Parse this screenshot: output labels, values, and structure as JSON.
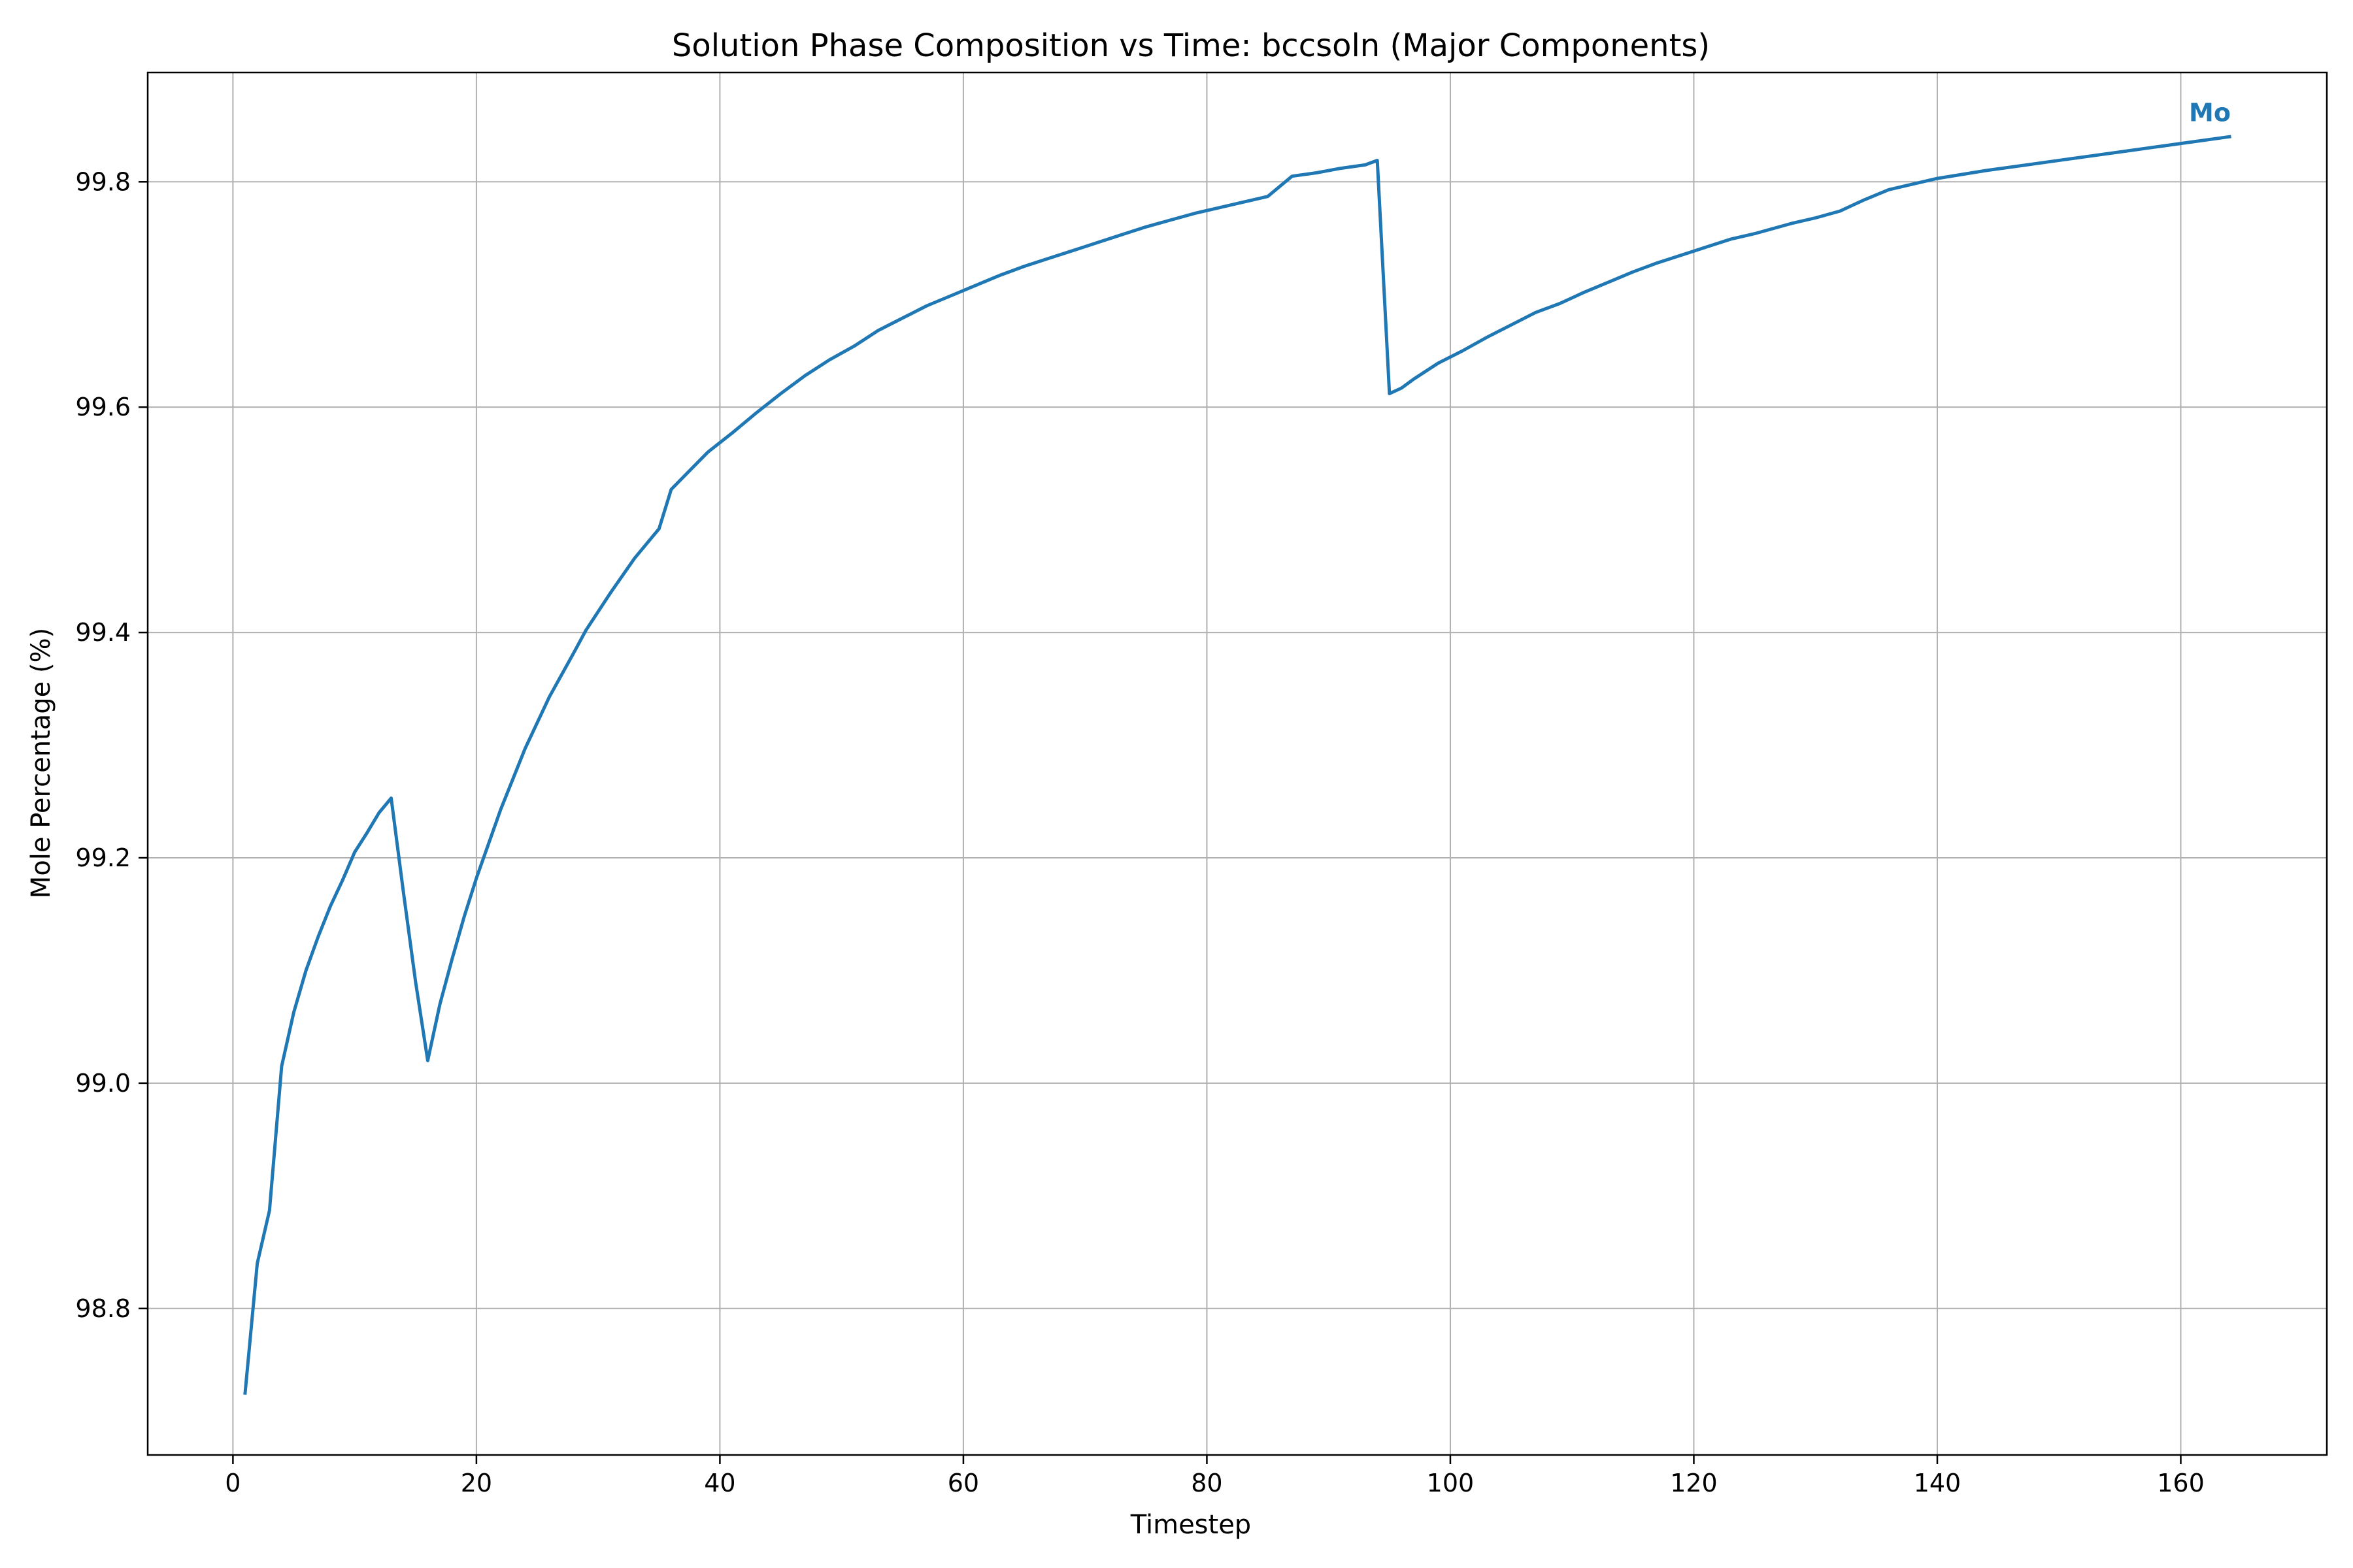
{
  "chart_data": {
    "type": "line",
    "title": "Solution Phase Composition vs Time: bccsoln (Major Components)",
    "xlabel": "Timestep",
    "ylabel": "Mole Percentage (%)",
    "xlim": [
      -7,
      172
    ],
    "ylim": [
      98.67,
      99.897
    ],
    "xticks": [
      0,
      20,
      40,
      60,
      80,
      100,
      120,
      140,
      160
    ],
    "yticks": [
      98.8,
      99.0,
      99.2,
      99.4,
      99.6,
      99.8
    ],
    "xtick_labels": [
      "0",
      "20",
      "40",
      "60",
      "80",
      "100",
      "120",
      "140",
      "160"
    ],
    "ytick_labels": [
      "98.8",
      "99.0",
      "99.2",
      "99.4",
      "99.6",
      "99.8"
    ],
    "grid": true,
    "series": [
      {
        "name": "Mo",
        "color": "#1f77b4",
        "x": [
          1,
          2,
          3,
          4,
          5,
          6,
          7,
          8,
          9,
          10,
          11,
          12,
          13,
          14,
          15,
          16,
          17,
          18,
          19,
          20,
          22,
          24,
          26,
          28,
          29,
          31,
          33,
          35,
          36,
          37,
          39,
          41,
          43,
          45,
          47,
          49,
          51,
          53,
          55,
          57,
          59,
          61,
          63,
          65,
          67,
          69,
          71,
          73,
          75,
          77,
          79,
          81,
          83,
          85,
          87,
          89,
          91,
          93,
          94,
          95,
          96,
          97,
          99,
          101,
          103,
          105,
          107,
          109,
          111,
          113,
          115,
          117,
          119,
          121,
          123,
          125,
          128,
          130,
          132,
          134,
          136,
          140,
          144,
          148,
          152,
          156,
          160,
          164
        ],
        "y": [
          98.725,
          98.84,
          98.887,
          99.015,
          99.063,
          99.1,
          99.13,
          99.157,
          99.18,
          99.205,
          99.222,
          99.24,
          99.253,
          99.17,
          99.09,
          99.02,
          99.07,
          99.11,
          99.148,
          99.182,
          99.243,
          99.297,
          99.343,
          99.382,
          99.402,
          99.435,
          99.466,
          99.492,
          99.527,
          99.538,
          99.56,
          99.577,
          99.595,
          99.612,
          99.628,
          99.642,
          99.654,
          99.668,
          99.679,
          99.69,
          99.699,
          99.708,
          99.717,
          99.725,
          99.732,
          99.739,
          99.746,
          99.753,
          99.76,
          99.766,
          99.772,
          99.777,
          99.782,
          99.787,
          99.805,
          99.808,
          99.812,
          99.815,
          99.819,
          99.612,
          99.617,
          99.625,
          99.639,
          99.65,
          99.662,
          99.673,
          99.684,
          99.692,
          99.702,
          99.711,
          99.72,
          99.728,
          99.735,
          99.742,
          99.749,
          99.754,
          99.763,
          99.768,
          99.774,
          99.784,
          99.793,
          99.803,
          99.81,
          99.816,
          99.822,
          99.828,
          99.834,
          99.84
        ]
      }
    ]
  }
}
